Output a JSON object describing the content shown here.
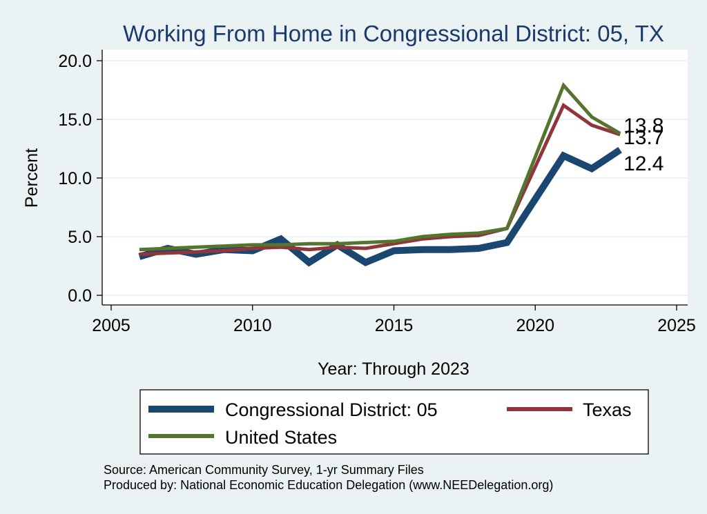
{
  "chart_data": {
    "type": "line",
    "title": "Working From Home in Congressional District: 05, TX",
    "xlabel": "Year: Through 2023",
    "ylabel": "Percent",
    "xlim": [
      2005,
      2025
    ],
    "ylim": [
      0,
      20
    ],
    "xticks": [
      2005,
      2010,
      2015,
      2020,
      2025
    ],
    "yticks": [
      "0.0",
      "5.0",
      "10.0",
      "15.0",
      "20.0"
    ],
    "grid": true,
    "legend_placement": "bottom",
    "x": [
      2006,
      2007,
      2008,
      2009,
      2010,
      2011,
      2012,
      2013,
      2014,
      2015,
      2016,
      2017,
      2018,
      2019,
      2021,
      2022,
      2023
    ],
    "series": [
      {
        "name": "Congressional District: 05",
        "color": "#1a476f",
        "values": [
          3.3,
          4.0,
          3.5,
          3.9,
          3.8,
          4.8,
          2.8,
          4.3,
          2.8,
          3.8,
          3.9,
          3.9,
          4.0,
          4.5,
          11.9,
          10.8,
          12.4
        ],
        "end_label": "12.4"
      },
      {
        "name": "Texas",
        "color": "#90353b",
        "values": [
          3.5,
          3.6,
          3.7,
          3.8,
          4.0,
          4.1,
          3.9,
          4.1,
          4.0,
          4.4,
          4.8,
          5.0,
          5.1,
          5.7,
          16.2,
          14.5,
          13.7
        ],
        "end_label": "13.7"
      },
      {
        "name": "United States",
        "color": "#55752f",
        "values": [
          3.9,
          4.0,
          4.1,
          4.2,
          4.3,
          4.3,
          4.4,
          4.4,
          4.5,
          4.6,
          5.0,
          5.2,
          5.3,
          5.7,
          17.9,
          15.2,
          13.8
        ],
        "end_label": "13.8"
      }
    ]
  },
  "source_line1": "Source: American Community Survey, 1-yr Summary Files",
  "source_line2": "Produced by: National Economic Education Delegation (www.NEEDelegation.org)"
}
